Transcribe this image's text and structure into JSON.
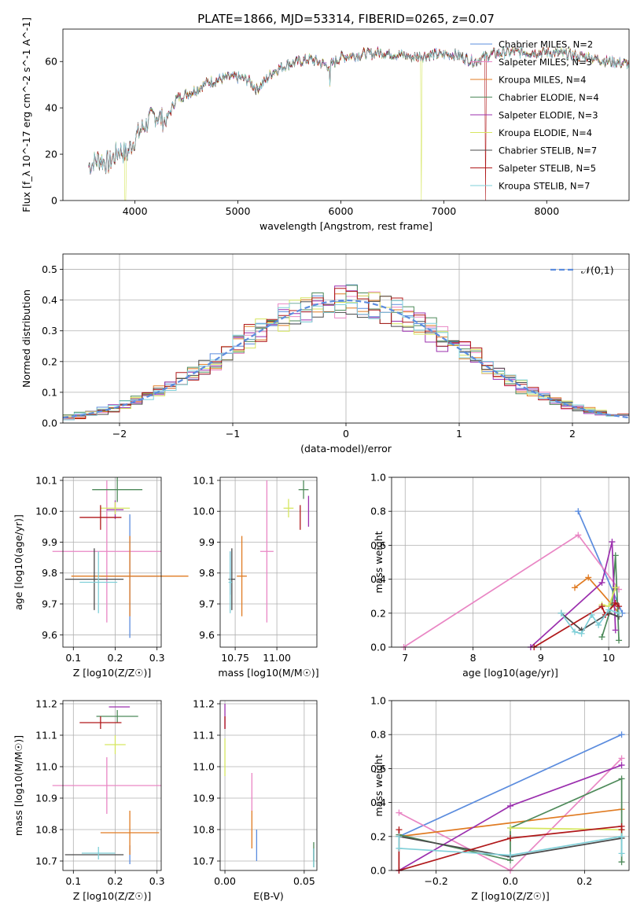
{
  "figure_title": "PLATE=1866, MJD=53314, FIBERID=0265, z=0.07",
  "chart_data": [
    {
      "id": "spectrum",
      "type": "line",
      "title": "PLATE=1866, MJD=53314, FIBERID=0265, z=0.07",
      "xlabel": "wavelength [Angstrom, rest frame]",
      "ylabel": "Flux [f_λ 10^-17 erg cm^-2 s^-1 A^-1]",
      "xlim": [
        3300,
        8800
      ],
      "ylim": [
        0,
        74
      ],
      "xticks": [
        4000,
        5000,
        6000,
        7000,
        8000
      ],
      "yticks": [
        0,
        20,
        40,
        60
      ],
      "grid": false,
      "legend_position": "top-right",
      "continuum": [
        [
          3550,
          15
        ],
        [
          3650,
          18
        ],
        [
          3750,
          16
        ],
        [
          3850,
          22
        ],
        [
          3920,
          20
        ],
        [
          4000,
          27
        ],
        [
          4100,
          33
        ],
        [
          4200,
          37
        ],
        [
          4300,
          34
        ],
        [
          4400,
          44
        ],
        [
          4500,
          46
        ],
        [
          4600,
          48
        ],
        [
          4700,
          51
        ],
        [
          4800,
          52
        ],
        [
          4900,
          53
        ],
        [
          5000,
          53
        ],
        [
          5100,
          52
        ],
        [
          5180,
          48
        ],
        [
          5250,
          51
        ],
        [
          5350,
          56
        ],
        [
          5500,
          59
        ],
        [
          5700,
          61
        ],
        [
          5890,
          58
        ],
        [
          6000,
          62
        ],
        [
          6200,
          63
        ],
        [
          6400,
          64
        ],
        [
          6563,
          63
        ],
        [
          6700,
          62
        ],
        [
          6900,
          63
        ],
        [
          7100,
          63
        ],
        [
          7300,
          60
        ],
        [
          7450,
          63
        ],
        [
          7600,
          64
        ],
        [
          7800,
          64
        ],
        [
          8000,
          64
        ],
        [
          8200,
          63
        ],
        [
          8400,
          62
        ],
        [
          8600,
          60
        ],
        [
          8800,
          59
        ]
      ],
      "series": [
        {
          "name": "Chabrier MILES, N_SSP=2",
          "color": "#5b8cde"
        },
        {
          "name": "Salpeter MILES, N_SSP=3",
          "color": "#e986c4"
        },
        {
          "name": "Kroupa MILES, N_SSP=4",
          "color": "#e07b22"
        },
        {
          "name": "Chabrier ELODIE, N_SSP=4",
          "color": "#4e8a5a"
        },
        {
          "name": "Salpeter ELODIE, N_SSP=3",
          "color": "#9b2fae"
        },
        {
          "name": "Kroupa ELODIE, N_SSP=4",
          "color": "#d6e660"
        },
        {
          "name": "Chabrier STELIB, N_SSP=7",
          "color": "#4a4a4a"
        },
        {
          "name": "Salpeter STELIB, N_SSP=5",
          "color": "#b0181a"
        },
        {
          "name": "Kroupa STELIB, N_SSP=7",
          "color": "#7fcfd8"
        }
      ]
    },
    {
      "id": "residuals",
      "type": "line",
      "xlabel": "(data-model)/error",
      "ylabel": "Normed distribution",
      "xlim": [
        -2.5,
        2.5
      ],
      "ylim": [
        0,
        0.55
      ],
      "xticks": [
        -2,
        -1,
        0,
        1,
        2
      ],
      "yticks": [
        0.0,
        0.1,
        0.2,
        0.3,
        0.4,
        0.5
      ],
      "grid": true,
      "legend_position": "top-right",
      "reference": {
        "name": "𝒩(0,1)",
        "color": "#5b8cde",
        "style": "dashed"
      },
      "hist_colors": [
        "#5b8cde",
        "#e986c4",
        "#e07b22",
        "#4e8a5a",
        "#9b2fae",
        "#d6e660",
        "#4a4a4a",
        "#b0181a",
        "#7fcfd8"
      ]
    },
    {
      "id": "age-vs-Z",
      "type": "scatter",
      "xlabel": "Z [log10(Z/Z☉)]",
      "ylabel": "age [log10(age/yr)]",
      "xlim": [
        0.075,
        0.31
      ],
      "ylim": [
        9.56,
        10.11
      ],
      "xticks": [
        0.1,
        0.2,
        0.3
      ],
      "yticks": [
        9.6,
        9.7,
        9.8,
        9.9,
        10.0,
        10.1
      ],
      "grid": true,
      "points": [
        {
          "x": 0.235,
          "y": 9.79,
          "xerr": 0.07,
          "yerr": 0.2,
          "color": "#5b8cde"
        },
        {
          "x": 0.18,
          "y": 9.87,
          "xerr": 0.13,
          "yerr": 0.23,
          "color": "#e986c4"
        },
        {
          "x": 0.235,
          "y": 9.79,
          "xerr": 0.14,
          "yerr": 0.13,
          "color": "#e07b22"
        },
        {
          "x": 0.205,
          "y": 10.07,
          "xerr": 0.06,
          "yerr": 0.04,
          "color": "#4e8a5a"
        },
        {
          "x": 0.2,
          "y": 10.005,
          "xerr": 0.02,
          "yerr": 0.03,
          "color": "#9b2fae"
        },
        {
          "x": 0.2,
          "y": 10.01,
          "xerr": 0.035,
          "yerr": 0.02,
          "color": "#d6e660"
        },
        {
          "x": 0.15,
          "y": 9.78,
          "xerr": 0.07,
          "yerr": 0.1,
          "color": "#4a4a4a"
        },
        {
          "x": 0.165,
          "y": 9.98,
          "xerr": 0.05,
          "yerr": 0.04,
          "color": "#b0181a"
        },
        {
          "x": 0.16,
          "y": 9.77,
          "xerr": 0.045,
          "yerr": 0.1,
          "color": "#7fcfd8"
        }
      ]
    },
    {
      "id": "age-vs-mass",
      "type": "scatter",
      "xlabel": "mass [log10(M/M☉)]",
      "ylabel": "",
      "xlim": [
        10.66,
        11.24
      ],
      "ylim": [
        9.56,
        10.11
      ],
      "xticks": [
        10.75,
        11.0
      ],
      "yticks": [
        9.6,
        9.7,
        9.8,
        9.9,
        10.0,
        10.1
      ],
      "grid": true,
      "points": [
        {
          "x": 10.72,
          "y": 9.8,
          "xerr": 0.0,
          "yerr": 0.07,
          "color": "#5b8cde"
        },
        {
          "x": 10.94,
          "y": 9.87,
          "xerr": 0.04,
          "yerr": 0.23,
          "color": "#e986c4"
        },
        {
          "x": 10.79,
          "y": 9.79,
          "xerr": 0.03,
          "yerr": 0.13,
          "color": "#e07b22"
        },
        {
          "x": 11.16,
          "y": 10.07,
          "xerr": 0.03,
          "yerr": 0.03,
          "color": "#4e8a5a"
        },
        {
          "x": 11.19,
          "y": 10.0,
          "xerr": 0.0,
          "yerr": 0.05,
          "color": "#9b2fae"
        },
        {
          "x": 11.07,
          "y": 10.01,
          "xerr": 0.03,
          "yerr": 0.03,
          "color": "#d6e660"
        },
        {
          "x": 10.73,
          "y": 9.78,
          "xerr": 0.02,
          "yerr": 0.1,
          "color": "#4a4a4a"
        },
        {
          "x": 11.14,
          "y": 9.98,
          "xerr": 0.0,
          "yerr": 0.04,
          "color": "#b0181a"
        },
        {
          "x": 10.72,
          "y": 9.77,
          "xerr": 0.01,
          "yerr": 0.1,
          "color": "#7fcfd8"
        }
      ]
    },
    {
      "id": "massweight-vs-age",
      "type": "line",
      "xlabel": "age [log10(age/yr)]",
      "ylabel": "mass weight",
      "xlim": [
        6.8,
        10.3
      ],
      "ylim": [
        0,
        1
      ],
      "xticks": [
        7,
        8,
        9,
        10
      ],
      "yticks": [
        0.0,
        0.2,
        0.4,
        0.6,
        0.8,
        1.0
      ],
      "grid": true,
      "series": [
        {
          "color": "#5b8cde",
          "x": [
            9.55,
            10.2
          ],
          "y": [
            0.8,
            0.2
          ]
        },
        {
          "color": "#e986c4",
          "x": [
            6.98,
            9.55,
            10.15
          ],
          "y": [
            0.0,
            0.66,
            0.34
          ]
        },
        {
          "color": "#e07b22",
          "x": [
            9.5,
            9.7,
            10.05,
            10.15
          ],
          "y": [
            0.35,
            0.41,
            0.25,
            0.2
          ]
        },
        {
          "color": "#4e8a5a",
          "x": [
            9.9,
            10.05,
            10.1,
            10.15
          ],
          "y": [
            0.06,
            0.25,
            0.54,
            0.04
          ]
        },
        {
          "color": "#9b2fae",
          "x": [
            8.85,
            9.9,
            10.05,
            10.1
          ],
          "y": [
            0.0,
            0.38,
            0.62,
            0.1
          ]
        },
        {
          "color": "#d6e660",
          "x": [
            9.9,
            10.0,
            10.1
          ],
          "y": [
            0.25,
            0.24,
            0.35
          ]
        },
        {
          "color": "#4a4a4a",
          "x": [
            9.3,
            9.6,
            10.0,
            10.15
          ],
          "y": [
            0.2,
            0.1,
            0.2,
            0.18
          ]
        },
        {
          "color": "#b0181a",
          "x": [
            8.9,
            9.9,
            9.95,
            10.1,
            10.15
          ],
          "y": [
            0.0,
            0.24,
            0.19,
            0.26,
            0.24
          ]
        },
        {
          "color": "#7fcfd8",
          "x": [
            9.3,
            9.5,
            9.6,
            9.75,
            9.85,
            10.0,
            10.15
          ],
          "y": [
            0.2,
            0.09,
            0.08,
            0.19,
            0.13,
            0.22,
            0.2
          ]
        }
      ]
    },
    {
      "id": "mass-vs-Z",
      "type": "scatter",
      "xlabel": "Z [log10(Z/Z☉)]",
      "ylabel": "mass [log10(M/M☉)]",
      "xlim": [
        0.075,
        0.31
      ],
      "ylim": [
        10.67,
        11.21
      ],
      "xticks": [
        0.1,
        0.2,
        0.3
      ],
      "yticks": [
        10.7,
        10.8,
        10.9,
        11.0,
        11.1,
        11.2
      ],
      "grid": true,
      "points": [
        {
          "x": 0.235,
          "y": 10.72,
          "xerr": 0.0,
          "yerr": 0.03,
          "color": "#5b8cde"
        },
        {
          "x": 0.18,
          "y": 10.94,
          "xerr": 0.13,
          "yerr": 0.09,
          "color": "#e986c4"
        },
        {
          "x": 0.235,
          "y": 10.79,
          "xerr": 0.07,
          "yerr": 0.07,
          "color": "#e07b22"
        },
        {
          "x": 0.205,
          "y": 11.16,
          "xerr": 0.05,
          "yerr": 0.02,
          "color": "#4e8a5a"
        },
        {
          "x": 0.21,
          "y": 11.19,
          "xerr": 0.025,
          "yerr": 0.0,
          "color": "#9b2fae"
        },
        {
          "x": 0.2,
          "y": 11.07,
          "xerr": 0.025,
          "yerr": 0.03,
          "color": "#d6e660"
        },
        {
          "x": 0.15,
          "y": 10.72,
          "xerr": 0.07,
          "yerr": 0.0,
          "color": "#4a4a4a"
        },
        {
          "x": 0.165,
          "y": 11.14,
          "xerr": 0.05,
          "yerr": 0.02,
          "color": "#b0181a"
        },
        {
          "x": 0.16,
          "y": 10.725,
          "xerr": 0.04,
          "yerr": 0.02,
          "color": "#7fcfd8"
        }
      ]
    },
    {
      "id": "mass-vs-ebv",
      "type": "scatter",
      "xlabel": "E(B-V)",
      "ylabel": "",
      "xlim": [
        -0.003,
        0.058
      ],
      "ylim": [
        10.67,
        11.21
      ],
      "xticks": [
        0.0,
        0.05
      ],
      "yticks": [
        10.7,
        10.8,
        10.9,
        11.0,
        11.1,
        11.2
      ],
      "grid": true,
      "points": [
        {
          "x": 0.02,
          "y": 10.75,
          "xerr": 0.0,
          "yerr": 0.05,
          "color": "#5b8cde"
        },
        {
          "x": 0.017,
          "y": 10.92,
          "xerr": 0.0,
          "yerr": 0.06,
          "color": "#e986c4"
        },
        {
          "x": 0.017,
          "y": 10.8,
          "xerr": 0.0,
          "yerr": 0.06,
          "color": "#e07b22"
        },
        {
          "x": 0.056,
          "y": 10.72,
          "xerr": 0.0,
          "yerr": 0.04,
          "color": "#4e8a5a"
        },
        {
          "x": 0.0,
          "y": 11.16,
          "xerr": 0.0,
          "yerr": 0.04,
          "color": "#9b2fae"
        },
        {
          "x": 0.0,
          "y": 11.03,
          "xerr": 0.0,
          "yerr": 0.06,
          "color": "#d6e660"
        },
        {
          "x": 0.056,
          "y": 10.72,
          "xerr": 0.0,
          "yerr": 0.02,
          "color": "#4a4a4a"
        },
        {
          "x": 0.0,
          "y": 11.14,
          "xerr": 0.0,
          "yerr": 0.02,
          "color": "#b0181a"
        },
        {
          "x": 0.056,
          "y": 10.71,
          "xerr": 0.0,
          "yerr": 0.03,
          "color": "#7fcfd8"
        }
      ]
    },
    {
      "id": "massweight-vs-Z",
      "type": "line",
      "xlabel": "Z [log10(Z/Z☉)]",
      "ylabel": "mass weight",
      "xlim": [
        -0.32,
        0.32
      ],
      "ylim": [
        0,
        1
      ],
      "xticks": [
        -0.2,
        0.0,
        0.2
      ],
      "yticks": [
        0.0,
        0.2,
        0.4,
        0.6,
        0.8,
        1.0
      ],
      "grid": true,
      "series": [
        {
          "color": "#5b8cde",
          "x": [
            -0.3,
            0.3
          ],
          "y": [
            0.2,
            0.8
          ]
        },
        {
          "color": "#e986c4",
          "x": [
            -0.3,
            0.0,
            0.3
          ],
          "y": [
            0.34,
            0.0,
            0.66
          ]
        },
        {
          "color": "#e07b22",
          "x": [
            -0.3,
            0.3
          ],
          "y": [
            0.2,
            0.36
          ]
        },
        {
          "color": "#4e8a5a",
          "x": [
            -0.3,
            0.0,
            0.0,
            0.3,
            0.3
          ],
          "y": [
            0.21,
            0.06,
            0.25,
            0.54,
            0.05
          ]
        },
        {
          "color": "#9b2fae",
          "x": [
            -0.3,
            0.0,
            0.3
          ],
          "y": [
            0.0,
            0.38,
            0.62
          ]
        },
        {
          "color": "#d6e660",
          "x": [
            0.0,
            0.3
          ],
          "y": [
            0.25,
            0.24
          ]
        },
        {
          "color": "#4a4a4a",
          "x": [
            -0.3,
            0.0,
            0.3
          ],
          "y": [
            0.2,
            0.08,
            0.19
          ]
        },
        {
          "color": "#b0181a",
          "x": [
            -0.3,
            -0.3,
            0.0,
            0.3,
            0.3
          ],
          "y": [
            0.24,
            0.0,
            0.19,
            0.26,
            0.24
          ]
        },
        {
          "color": "#7fcfd8",
          "x": [
            -0.3,
            -0.3,
            0.0,
            0.3,
            0.3
          ],
          "y": [
            0.2,
            0.13,
            0.09,
            0.2,
            0.1
          ]
        }
      ]
    }
  ]
}
